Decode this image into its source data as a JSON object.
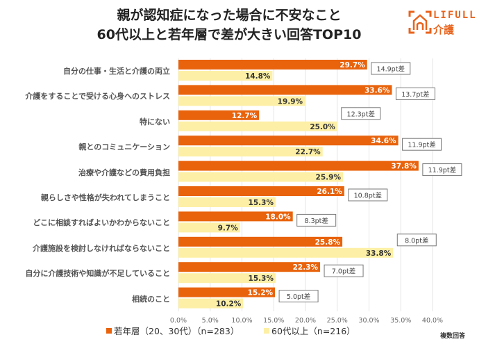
{
  "header": {
    "title_line1": "親が認知症になった場合に不安なこと",
    "title_line2": "60代以上と若年層で差が大きい回答TOP10",
    "logo_text": "LIFULL",
    "logo_kanji": "介護"
  },
  "note": "複数回答",
  "colors": {
    "young": "#e8630c",
    "senior": "#fdf0a6",
    "grid": "#e6e6e6",
    "diff_border": "#777777",
    "brand": "#e8631c"
  },
  "chart_data": {
    "type": "bar",
    "orientation": "horizontal",
    "title": "親が認知症になった場合に不安なこと 60代以上と若年層で差が大きい回答TOP10",
    "xlabel": "",
    "ylabel": "",
    "xlim": [
      0,
      40
    ],
    "x_ticks": [
      "0.0%",
      "5.0%",
      "10.0%",
      "15.0%",
      "20.0%",
      "25.0%",
      "30.0%",
      "35.0%",
      "40.0%"
    ],
    "grid": true,
    "legend_position": "bottom",
    "categories": [
      "自分の仕事・生活と介護の両立",
      "介護をすることで受ける心身へのストレス",
      "特にない",
      "親とのコミュニケーション",
      "治療や介護などの費用負担",
      "親らしさや性格が失われてしまうこと",
      "どこに相談すればよいかわからないこと",
      "介護施設を検討しなければならないこと",
      "自分に介護技術や知識が不足していること",
      "相続のこと"
    ],
    "series": [
      {
        "name": "若年層（20、30代）（n=283）",
        "values": [
          29.7,
          33.6,
          12.7,
          34.6,
          37.8,
          26.1,
          18.0,
          25.8,
          22.3,
          15.2
        ],
        "labels": [
          "29.7%",
          "33.6%",
          "12.7%",
          "34.6%",
          "37.8%",
          "26.1%",
          "18.0%",
          "25.8%",
          "22.3%",
          "15.2%"
        ]
      },
      {
        "name": "60代以上（n=216）",
        "values": [
          14.8,
          19.9,
          25.0,
          22.7,
          25.9,
          15.3,
          9.7,
          33.8,
          15.3,
          10.2
        ],
        "labels": [
          "14.8%",
          "19.9%",
          "25.0%",
          "22.7%",
          "25.9%",
          "15.3%",
          "9.7%",
          "33.8%",
          "15.3%",
          "10.2%"
        ]
      }
    ],
    "differences": [
      "14.9pt差",
      "13.7pt差",
      "12.3pt差",
      "11.9pt差",
      "11.9pt差",
      "10.8pt差",
      "8.3pt差",
      "8.0pt差",
      "7.0pt差",
      "5.0pt差"
    ],
    "legend": [
      "若年層（20、30代）（n=283）",
      "60代以上（n=216）"
    ]
  }
}
